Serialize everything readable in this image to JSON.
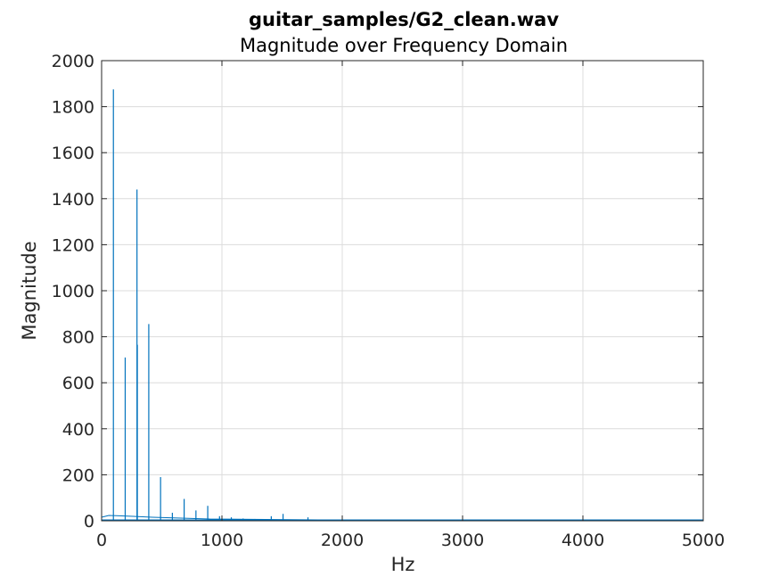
{
  "chart_data": {
    "type": "line",
    "title": "guitar_samples/G2_clean.wav",
    "subtitle": "Magnitude over Frequency Domain",
    "xlabel": "Hz",
    "ylabel": "Magnitude",
    "xlim": [
      0,
      5000
    ],
    "ylim": [
      0,
      2000
    ],
    "xticks": [
      0,
      1000,
      2000,
      3000,
      4000,
      5000
    ],
    "yticks": [
      0,
      200,
      400,
      600,
      800,
      1000,
      1200,
      1400,
      1600,
      1800,
      2000
    ],
    "grid": true,
    "line_color": "#0072bd",
    "peaks": [
      {
        "x": 98,
        "y": 1875
      },
      {
        "x": 196,
        "y": 710
      },
      {
        "x": 294,
        "y": 1440
      },
      {
        "x": 297,
        "y": 765
      },
      {
        "x": 392,
        "y": 855
      },
      {
        "x": 490,
        "y": 190
      },
      {
        "x": 588,
        "y": 35
      },
      {
        "x": 686,
        "y": 95
      },
      {
        "x": 784,
        "y": 45
      },
      {
        "x": 882,
        "y": 65
      },
      {
        "x": 980,
        "y": 20
      },
      {
        "x": 1078,
        "y": 15
      },
      {
        "x": 1176,
        "y": 10
      },
      {
        "x": 1274,
        "y": 8
      },
      {
        "x": 1410,
        "y": 20
      },
      {
        "x": 1508,
        "y": 30
      },
      {
        "x": 1715,
        "y": 15
      }
    ]
  }
}
